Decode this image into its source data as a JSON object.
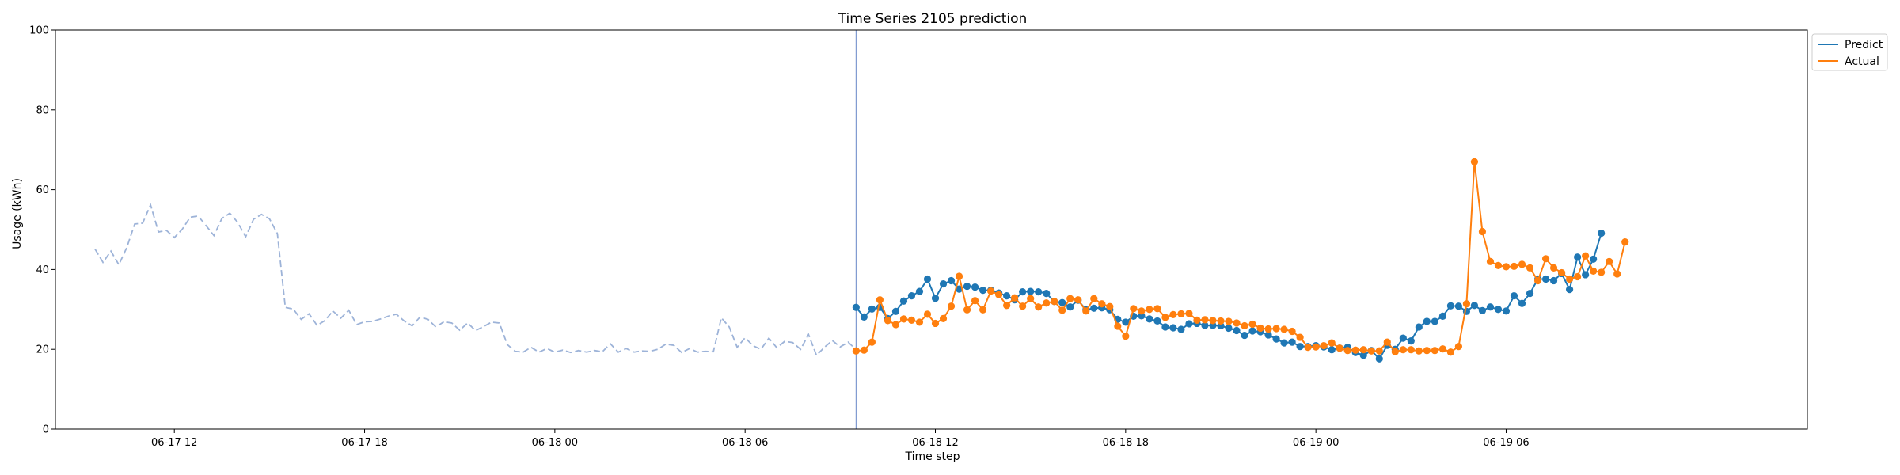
{
  "chart_data": {
    "type": "line",
    "title": "Time Series 2105 prediction",
    "xlabel": "Time step",
    "ylabel": "Usage (kWh)",
    "ylim": [
      0,
      100
    ],
    "xlim": [
      -5,
      216
    ],
    "yticks": [
      0,
      20,
      40,
      60,
      80,
      100
    ],
    "xticks": [
      {
        "x": 10,
        "label": "06-17 12"
      },
      {
        "x": 34,
        "label": "06-17 18"
      },
      {
        "x": 58,
        "label": "06-18 00"
      },
      {
        "x": 82,
        "label": "06-18 06"
      },
      {
        "x": 106,
        "label": "06-18 12"
      },
      {
        "x": 130,
        "label": "06-18 18"
      },
      {
        "x": 154,
        "label": "06-19 00"
      },
      {
        "x": 178,
        "label": "06-19 06"
      }
    ],
    "grid": false,
    "legend_position": "outside top-right",
    "forecast_start": 96,
    "series": [
      {
        "name": "history",
        "style": "dashed",
        "color": "#9db3d8",
        "start": 0,
        "values": [
          45.1,
          41.8,
          44.6,
          41.2,
          45.5,
          51.4,
          51.6,
          56.2,
          49.4,
          49.8,
          48.0,
          50.1,
          53.1,
          53.4,
          51.0,
          48.5,
          52.8,
          54.1,
          51.8,
          48.2,
          52.6,
          53.8,
          52.7,
          49.0,
          30.5,
          30.1,
          27.5,
          28.9,
          26.0,
          27.2,
          29.6,
          27.8,
          29.8,
          26.2,
          26.9,
          27.0,
          27.6,
          28.3,
          28.8,
          27.1,
          25.9,
          28.1,
          27.5,
          25.6,
          26.9,
          26.6,
          24.8,
          26.6,
          24.7,
          25.7,
          26.8,
          26.6,
          21.2,
          19.5,
          19.3,
          20.5,
          19.3,
          20.2,
          19.3,
          19.8,
          19.2,
          19.7,
          19.3,
          19.7,
          19.4,
          21.4,
          19.3,
          20.2,
          19.3,
          19.6,
          19.5,
          20.0,
          21.3,
          21.0,
          19.2,
          20.2,
          19.3,
          19.5,
          19.4,
          27.9,
          25.6,
          20.5,
          22.9,
          20.9,
          20.0,
          22.8,
          20.4,
          22.0,
          21.7,
          20.0,
          23.7,
          18.5,
          20.5,
          22.2,
          20.6,
          21.8,
          19.9
        ]
      },
      {
        "name": "Predict",
        "style": "solid-markers",
        "color": "#1f77b4",
        "start": 96,
        "values": [
          30.5,
          28.1,
          30.1,
          30.5,
          27.7,
          29.5,
          32.1,
          33.4,
          34.5,
          37.6,
          32.8,
          36.4,
          37.2,
          35.1,
          35.8,
          35.6,
          34.8,
          34.8,
          34.1,
          33.4,
          32.4,
          34.4,
          34.5,
          34.4,
          34.0,
          32.0,
          31.7,
          30.6,
          32.3,
          29.9,
          30.3,
          30.4,
          29.9,
          27.5,
          26.8,
          28.3,
          28.4,
          27.6,
          27.1,
          25.6,
          25.4,
          25.0,
          26.4,
          26.5,
          26.0,
          26.0,
          25.9,
          25.3,
          24.7,
          23.5,
          24.6,
          24.4,
          23.6,
          22.6,
          21.6,
          21.8,
          20.7,
          20.7,
          20.9,
          20.6,
          19.9,
          20.3,
          20.5,
          19.2,
          18.5,
          19.7,
          17.6,
          21.0,
          20.0,
          22.8,
          22.1,
          25.6,
          27.0,
          27.0,
          28.3,
          30.9,
          30.8,
          29.5,
          31.0,
          29.7,
          30.6,
          30.0,
          29.6,
          33.4,
          31.5,
          34.0,
          37.6,
          37.6,
          37.2,
          39.0,
          35.0,
          43.1,
          38.7,
          42.6,
          49.1
        ]
      },
      {
        "name": "Actual",
        "style": "solid-markers",
        "color": "#ff7f0e",
        "start": 96,
        "values": [
          19.6,
          19.8,
          21.8,
          32.4,
          27.2,
          26.2,
          27.6,
          27.3,
          26.8,
          28.8,
          26.5,
          27.7,
          30.8,
          38.3,
          29.9,
          32.2,
          29.9,
          34.6,
          33.7,
          31.0,
          32.9,
          30.8,
          32.7,
          30.6,
          31.6,
          32.0,
          29.8,
          32.7,
          32.4,
          29.6,
          32.7,
          31.4,
          30.7,
          25.8,
          23.3,
          30.2,
          29.6,
          30.0,
          30.2,
          28.0,
          28.7,
          28.9,
          29.0,
          27.3,
          27.4,
          27.2,
          27.1,
          27.0,
          26.6,
          25.9,
          26.3,
          25.3,
          25.1,
          25.2,
          25.0,
          24.5,
          23.0,
          20.5,
          20.6,
          20.9,
          21.6,
          20.3,
          19.7,
          19.8,
          19.9,
          19.6,
          19.6,
          21.8,
          19.4,
          19.9,
          19.9,
          19.6,
          19.7,
          19.7,
          20.1,
          19.3,
          20.7,
          31.4,
          67.0,
          49.5,
          42.0,
          41.0,
          40.7,
          40.8,
          41.3,
          40.4,
          37.2,
          42.7,
          40.4,
          39.2,
          37.6,
          38.2,
          43.4,
          39.6,
          39.3,
          42.0,
          38.9,
          46.9
        ]
      }
    ]
  }
}
